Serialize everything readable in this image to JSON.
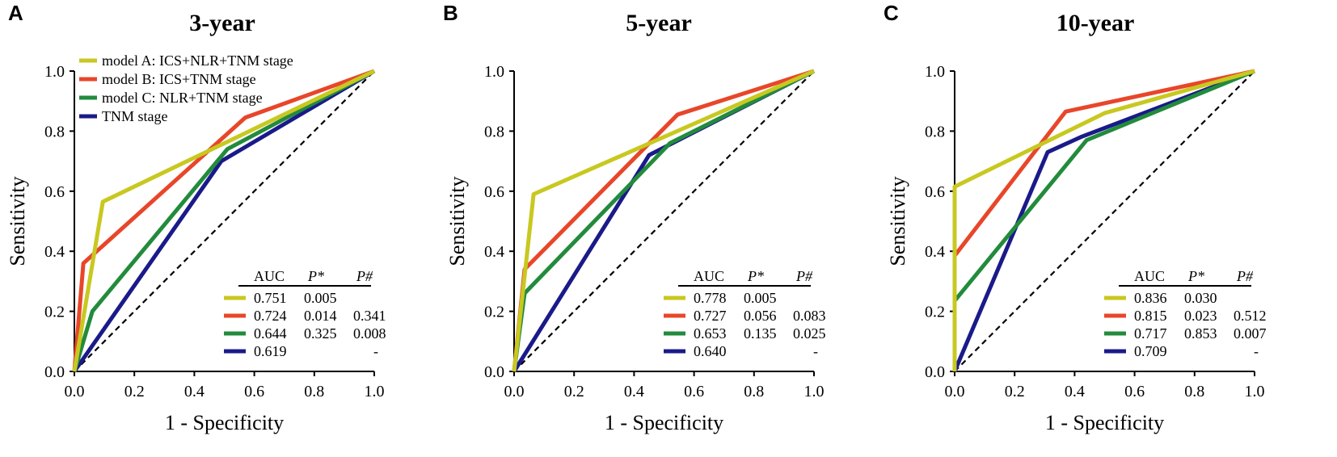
{
  "chart_data": [
    {
      "type": "line",
      "panel": "A",
      "title": "3-year",
      "xlabel": "1 - Specificity",
      "ylabel": "Sensitivity",
      "xlim": [
        0,
        1
      ],
      "ylim": [
        0,
        1
      ],
      "xticks": [
        "0.0",
        "0.2",
        "0.4",
        "0.6",
        "0.8",
        "1.0"
      ],
      "yticks": [
        "0.0",
        "0.2",
        "0.4",
        "0.6",
        "0.8",
        "1.0"
      ],
      "legend": true,
      "legend_position": "top-left",
      "series": [
        {
          "name": "model A: ICS+NLR+TNM stage",
          "color": "#c8c820",
          "x": [
            0,
            0.095,
            1
          ],
          "y": [
            0,
            0.565,
            1
          ]
        },
        {
          "name": "model B: ICS+TNM stage",
          "color": "#e8462a",
          "x": [
            0,
            0.03,
            0.57,
            1
          ],
          "y": [
            0,
            0.36,
            0.845,
            1
          ]
        },
        {
          "name": "model C: NLR+TNM stage",
          "color": "#228b3c",
          "x": [
            0,
            0.06,
            0.51,
            1
          ],
          "y": [
            0,
            0.2,
            0.74,
            1
          ]
        },
        {
          "name": "TNM stage",
          "color": "#1a1a8a",
          "x": [
            0,
            0.49,
            1
          ],
          "y": [
            0,
            0.7,
            1
          ]
        }
      ],
      "table": {
        "headers": [
          "AUC",
          "P*",
          "P#"
        ],
        "rows": [
          {
            "auc": "0.751",
            "p_star": "0.005",
            "p_hash": ""
          },
          {
            "auc": "0.724",
            "p_star": "0.014",
            "p_hash": "0.341"
          },
          {
            "auc": "0.644",
            "p_star": "0.325",
            "p_hash": "0.008"
          },
          {
            "auc": "0.619",
            "p_star": "",
            "p_hash": "-"
          }
        ]
      }
    },
    {
      "type": "line",
      "panel": "B",
      "title": "5-year",
      "xlabel": "1 - Specificity",
      "ylabel": "Sensitivity",
      "xlim": [
        0,
        1
      ],
      "ylim": [
        0,
        1
      ],
      "xticks": [
        "0.0",
        "0.2",
        "0.4",
        "0.6",
        "0.8",
        "1.0"
      ],
      "yticks": [
        "0.0",
        "0.2",
        "0.4",
        "0.6",
        "0.8",
        "1.0"
      ],
      "legend": false,
      "series": [
        {
          "name": "model A: ICS+NLR+TNM stage",
          "color": "#c8c820",
          "x": [
            0,
            0.065,
            1
          ],
          "y": [
            0,
            0.59,
            1
          ]
        },
        {
          "name": "model B: ICS+TNM stage",
          "color": "#e8462a",
          "x": [
            0,
            0.035,
            0.545,
            1
          ],
          "y": [
            0,
            0.34,
            0.855,
            1
          ]
        },
        {
          "name": "model C: NLR+TNM stage",
          "color": "#228b3c",
          "x": [
            0,
            0.035,
            0.52,
            1
          ],
          "y": [
            0,
            0.26,
            0.76,
            1
          ]
        },
        {
          "name": "TNM stage",
          "color": "#1a1a8a",
          "x": [
            0,
            0.45,
            1
          ],
          "y": [
            0,
            0.72,
            1
          ]
        }
      ],
      "table": {
        "headers": [
          "AUC",
          "P*",
          "P#"
        ],
        "rows": [
          {
            "auc": "0.778",
            "p_star": "0.005",
            "p_hash": ""
          },
          {
            "auc": "0.727",
            "p_star": "0.056",
            "p_hash": "0.083"
          },
          {
            "auc": "0.653",
            "p_star": "0.135",
            "p_hash": "0.025"
          },
          {
            "auc": "0.640",
            "p_star": "",
            "p_hash": "-"
          }
        ]
      }
    },
    {
      "type": "line",
      "panel": "C",
      "title": "10-year",
      "xlabel": "1 - Specificity",
      "ylabel": "Sensitivity",
      "xlim": [
        0,
        1
      ],
      "ylim": [
        0,
        1
      ],
      "xticks": [
        "0.0",
        "0.2",
        "0.4",
        "0.6",
        "0.8",
        "1.0"
      ],
      "yticks": [
        "0.0",
        "0.2",
        "0.4",
        "0.6",
        "0.8",
        "1.0"
      ],
      "legend": false,
      "series": [
        {
          "name": "model A: ICS+NLR+TNM stage",
          "color": "#c8c820",
          "x": [
            0,
            0,
            0.5,
            1
          ],
          "y": [
            0,
            0.615,
            0.86,
            1
          ]
        },
        {
          "name": "model B: ICS+TNM stage",
          "color": "#e8462a",
          "x": [
            0,
            0,
            0.37,
            1
          ],
          "y": [
            0,
            0.385,
            0.865,
            1
          ]
        },
        {
          "name": "model C: NLR+TNM stage",
          "color": "#228b3c",
          "x": [
            0,
            0,
            0.44,
            1
          ],
          "y": [
            0,
            0.235,
            0.77,
            1
          ]
        },
        {
          "name": "TNM stage",
          "color": "#1a1a8a",
          "x": [
            0,
            0.31,
            0.42,
            1
          ],
          "y": [
            0,
            0.73,
            0.78,
            1
          ]
        }
      ],
      "table": {
        "headers": [
          "AUC",
          "P*",
          "P#"
        ],
        "rows": [
          {
            "auc": "0.836",
            "p_star": "0.030",
            "p_hash": ""
          },
          {
            "auc": "0.815",
            "p_star": "0.023",
            "p_hash": "0.512"
          },
          {
            "auc": "0.717",
            "p_star": "0.853",
            "p_hash": "0.007"
          },
          {
            "auc": "0.709",
            "p_star": "",
            "p_hash": "-"
          }
        ]
      }
    }
  ]
}
